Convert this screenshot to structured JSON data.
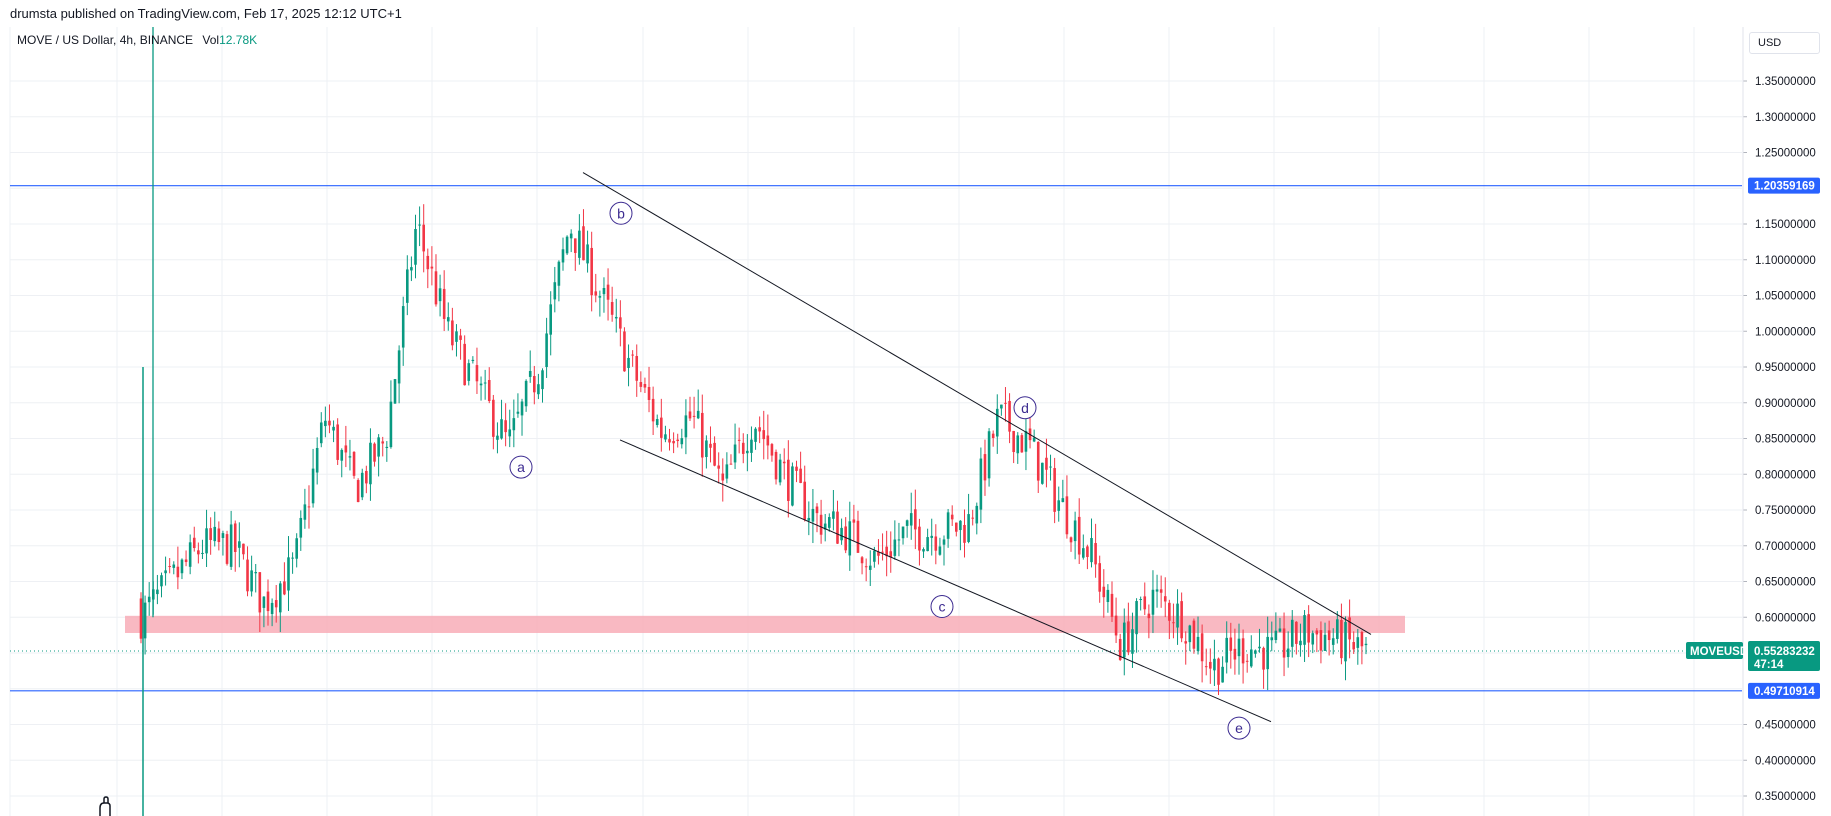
{
  "header": {
    "published": "drumsta published on TradingView.com, Feb 17, 2025 12:12 UTC+1"
  },
  "legend": {
    "symbol": "MOVE / US Dollar, 4h, BINANCE",
    "vol_label": "Vol",
    "vol_value": "12.78K"
  },
  "currency": "USD",
  "colors": {
    "up": "#089981",
    "down": "#f23645",
    "horizontal_line": "#2962ff",
    "zone": "#f7a8b3",
    "trendline": "#131722",
    "wave_label": "#3d2c91"
  },
  "chart_data": {
    "type": "candlestick",
    "symbol": "MOVEUSD",
    "timeframe": "4h",
    "exchange": "BINANCE",
    "y_axis": {
      "min": 0.33,
      "max": 1.38,
      "ticks": [
        "1.35000000",
        "1.30000000",
        "1.25000000",
        "1.15000000",
        "1.10000000",
        "1.05000000",
        "1.00000000",
        "0.95000000",
        "0.90000000",
        "0.85000000",
        "0.80000000",
        "0.75000000",
        "0.70000000",
        "0.65000000",
        "0.60000000",
        "0.45000000",
        "0.40000000",
        "0.35000000"
      ],
      "tick_values": [
        1.35,
        1.3,
        1.25,
        1.15,
        1.1,
        1.05,
        1.0,
        0.95,
        0.9,
        0.85,
        0.8,
        0.75,
        0.7,
        0.65,
        0.6,
        0.45,
        0.4,
        0.35
      ]
    },
    "horizontal_lines": [
      {
        "value": 1.20359169,
        "label": "1.20359169"
      },
      {
        "value": 0.49710914,
        "label": "0.49710914"
      }
    ],
    "current_price": {
      "value": 0.55283232,
      "label": "0.55283232",
      "countdown": "47:14",
      "tag": "MOVEUSD"
    },
    "zone": {
      "from": 0.578,
      "to": 0.602
    },
    "wave_labels": [
      {
        "text": "a",
        "value": 0.81
      },
      {
        "text": "b",
        "value": 1.165
      },
      {
        "text": "d",
        "value": 0.893
      },
      {
        "text": "c",
        "value": 0.615
      },
      {
        "text": "e",
        "value": 0.445
      }
    ],
    "trendlines": [
      {
        "from": 1.222,
        "to": 0.576
      },
      {
        "from": 0.848,
        "to": 0.454
      }
    ],
    "price_path": [
      [
        0.6,
        0.96
      ],
      [
        0.65,
        1.38
      ],
      [
        0.7,
        0.62
      ],
      [
        0.7,
        0.6
      ],
      [
        0.62,
        0.62
      ],
      [
        0.67,
        0.62
      ],
      [
        0.88,
        1.06
      ],
      [
        0.78,
        0.73
      ],
      [
        0.85,
        1.1
      ],
      [
        1.15,
        1.23
      ],
      [
        1.0,
        1.12
      ],
      [
        0.92,
        0.94
      ],
      [
        0.84,
        0.9
      ],
      [
        0.95,
        0.93
      ],
      [
        1.15,
        1.15
      ],
      [
        1.05,
        1.08
      ],
      [
        0.95,
        0.94
      ],
      [
        0.86,
        0.88
      ],
      [
        0.88,
        0.82
      ],
      [
        0.78,
        0.84
      ],
      [
        0.88,
        0.86
      ],
      [
        0.8,
        0.8
      ],
      [
        0.74,
        0.77
      ],
      [
        0.72,
        0.7
      ],
      [
        0.68,
        0.65
      ],
      [
        0.72,
        0.7
      ],
      [
        0.72,
        0.66
      ],
      [
        0.73,
        0.71
      ],
      [
        0.88,
        0.8
      ],
      [
        0.84,
        0.78
      ],
      [
        0.76,
        0.72
      ],
      [
        0.69,
        0.66
      ],
      [
        0.56,
        0.66
      ],
      [
        0.63,
        0.63
      ],
      [
        0.6,
        0.55
      ],
      [
        0.53,
        0.51
      ],
      [
        0.56,
        0.57
      ],
      [
        0.55,
        0.56
      ],
      [
        0.58,
        0.6
      ],
      [
        0.57,
        0.55
      ],
      [
        0.553,
        0.553
      ]
    ]
  }
}
